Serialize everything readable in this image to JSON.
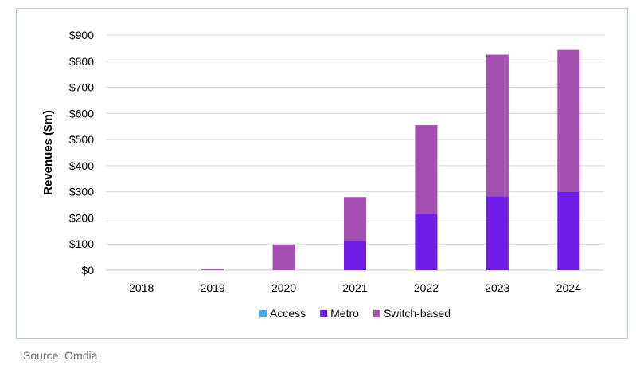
{
  "chart_data": {
    "type": "bar",
    "stacked": true,
    "categories": [
      "2018",
      "2019",
      "2020",
      "2021",
      "2022",
      "2023",
      "2024"
    ],
    "series": [
      {
        "name": "Access",
        "color": "#4aa8f0",
        "values": [
          0,
          0,
          0,
          0,
          0,
          0,
          0
        ]
      },
      {
        "name": "Metro",
        "color": "#6f1de6",
        "values": [
          0,
          0,
          0,
          112,
          215,
          282,
          300
        ]
      },
      {
        "name": "Switch-based",
        "color": "#a34fb0",
        "values": [
          0,
          6,
          98,
          168,
          340,
          543,
          543
        ]
      }
    ],
    "ylabel": "Revenues ($m)",
    "ylim": [
      0,
      900
    ],
    "yticks": [
      0,
      100,
      200,
      300,
      400,
      500,
      600,
      700,
      800,
      900
    ],
    "ytick_labels": [
      "$0",
      "$100",
      "$200",
      "$300",
      "$400",
      "$500",
      "$600",
      "$700",
      "$800",
      "$900"
    ],
    "grid": true,
    "legend_position": "bottom"
  },
  "source_text": "Source: Omdia"
}
